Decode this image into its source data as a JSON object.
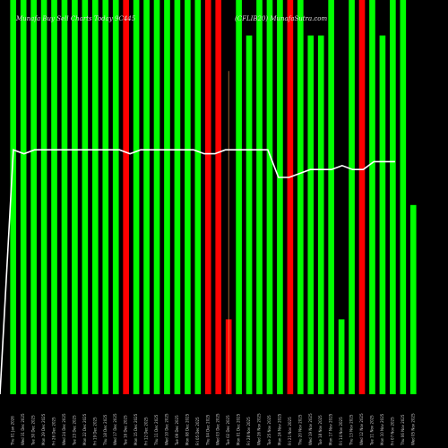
{
  "chart_data": {
    "type": "bar",
    "title": "Munafa Buy Sell Charts Today 9C445",
    "subtitle": "(CFLIB20) MunafaSutra.com",
    "ylim": [
      0,
      100
    ],
    "x_tick_labels": [
      "Thu 01 Jan 2026",
      "Wed 31 Dec 2025",
      "Tue 30 Dec 2025",
      "Mon 29 Dec 2025",
      "Fri 26 Dec 2025",
      "Wed 24 Dec 2025",
      "Tue 23 Dec 2025",
      "Mon 22 Dec 2025",
      "Fri 19 Dec 2025",
      "Thu 18 Dec 2025",
      "Wed 17 Dec 2025",
      "Tue 16 Dec 2025",
      "Mon 15 Dec 2025",
      "Fri 12 Dec 2025",
      "Thu 11 Dec 2025",
      "Wed 10 Dec 2025",
      "Tue 09 Dec 2025",
      "Mon 08 Dec 2025",
      "Fri 05 Dec 2025",
      "Thu 04 Dec 2025",
      "Wed 03 Dec 2025",
      "Tue 02 Dec 2025",
      "Mon 01 Dec 2025",
      "Fri 28 Nov 2025",
      "Wed 26 Nov 2025",
      "Tue 25 Nov 2025",
      "Mon 24 Nov 2025",
      "Fri 21 Nov 2025",
      "Thu 20 Nov 2025",
      "Wed 19 Nov 2025",
      "Tue 18 Nov 2025",
      "Mon 17 Nov 2025",
      "Fri 14 Nov 2025",
      "Thu 13 Nov 2025",
      "Wed 12 Nov 2025",
      "Tue 11 Nov 2025",
      "Mon 10 Nov 2025",
      "Fri 07 Nov 2025",
      "Thu 06 Nov 2025",
      "Wed 05 Nov 2025"
    ],
    "bars": [
      {
        "value": 100,
        "color": "#00ff00"
      },
      {
        "value": 100,
        "color": "#00ff00"
      },
      {
        "value": 100,
        "color": "#00ff00"
      },
      {
        "value": 100,
        "color": "#00ff00"
      },
      {
        "value": 100,
        "color": "#00ff00"
      },
      {
        "value": 100,
        "color": "#00ff00"
      },
      {
        "value": 100,
        "color": "#00ff00"
      },
      {
        "value": 100,
        "color": "#00ff00"
      },
      {
        "value": 100,
        "color": "#00ff00"
      },
      {
        "value": 100,
        "color": "#00ff00"
      },
      {
        "value": 100,
        "color": "#00ff00"
      },
      {
        "value": 100,
        "color": "#ff0000"
      },
      {
        "value": 100,
        "color": "#00ff00"
      },
      {
        "value": 100,
        "color": "#00ff00"
      },
      {
        "value": 100,
        "color": "#00ff00"
      },
      {
        "value": 100,
        "color": "#00ff00"
      },
      {
        "value": 100,
        "color": "#00ff00"
      },
      {
        "value": 100,
        "color": "#00ff00"
      },
      {
        "value": 100,
        "color": "#00ff00"
      },
      {
        "value": 100,
        "color": "#ff0000"
      },
      {
        "value": 100,
        "color": "#ff0000"
      },
      {
        "value": 19,
        "color": "#ff0000"
      },
      {
        "value": 100,
        "color": "#00ff00"
      },
      {
        "value": 91,
        "color": "#00ff00"
      },
      {
        "value": 100,
        "color": "#00ff00"
      },
      {
        "value": 100,
        "color": "#00ff00"
      },
      {
        "value": 100,
        "color": "#00ff00"
      },
      {
        "value": 100,
        "color": "#ff0000"
      },
      {
        "value": 100,
        "color": "#00ff00"
      },
      {
        "value": 91,
        "color": "#00ff00"
      },
      {
        "value": 91,
        "color": "#00ff00"
      },
      {
        "value": 100,
        "color": "#00ff00"
      },
      {
        "value": 19,
        "color": "#00ff00"
      },
      {
        "value": 100,
        "color": "#00ff00"
      },
      {
        "value": 100,
        "color": "#ff0000"
      },
      {
        "value": 100,
        "color": "#00ff00"
      },
      {
        "value": 91,
        "color": "#00ff00"
      },
      {
        "value": 100,
        "color": "#00ff00"
      },
      {
        "value": 100,
        "color": "#00ff00"
      },
      {
        "value": 48,
        "color": "#00ff00"
      }
    ],
    "line": {
      "color": "#ffffff",
      "values": [
        62,
        61,
        62,
        62,
        62,
        62,
        62,
        62,
        62,
        62,
        62,
        61,
        62,
        62,
        62,
        62,
        62,
        62,
        61,
        61,
        62,
        62,
        62,
        62,
        62,
        55,
        55,
        56,
        57,
        57,
        57,
        58,
        57,
        57,
        59,
        59,
        59
      ],
      "start": [
        0,
        0
      ]
    },
    "thin_lines": [
      {
        "value": 82,
        "color": "#ffaa55"
      }
    ],
    "grid": false,
    "legend": "none"
  }
}
